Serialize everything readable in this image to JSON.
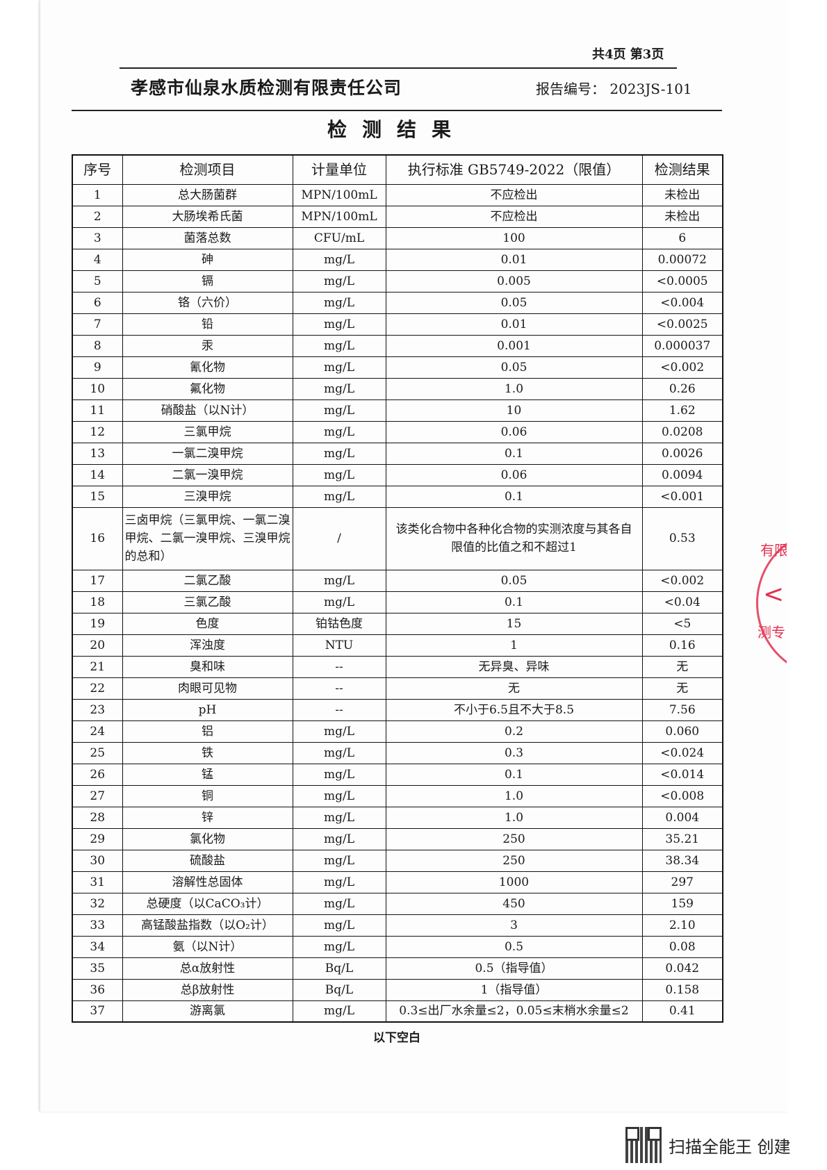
{
  "page_info": "共4页 第3页",
  "company": "孝感市仙泉水质检测有限责任公司",
  "report_no": "报告编号： 2023JS-101",
  "title": "检测结果",
  "table": {
    "headers": [
      "序号",
      "检测项目",
      "计量单位",
      "执行标准 GB5749-2022（限值）",
      "检测结果"
    ],
    "rows": [
      [
        "1",
        "总大肠菌群",
        "MPN/100mL",
        "不应检出",
        "未检出"
      ],
      [
        "2",
        "大肠埃希氏菌",
        "MPN/100mL",
        "不应检出",
        "未检出"
      ],
      [
        "3",
        "菌落总数",
        "CFU/mL",
        "100",
        "6"
      ],
      [
        "4",
        "砷",
        "mg/L",
        "0.01",
        "0.00072"
      ],
      [
        "5",
        "镉",
        "mg/L",
        "0.005",
        "<0.0005"
      ],
      [
        "6",
        "铬（六价）",
        "mg/L",
        "0.05",
        "<0.004"
      ],
      [
        "7",
        "铅",
        "mg/L",
        "0.01",
        "<0.0025"
      ],
      [
        "8",
        "汞",
        "mg/L",
        "0.001",
        "0.000037"
      ],
      [
        "9",
        "氰化物",
        "mg/L",
        "0.05",
        "<0.002"
      ],
      [
        "10",
        "氟化物",
        "mg/L",
        "1.0",
        "0.26"
      ],
      [
        "11",
        "硝酸盐（以N计）",
        "mg/L",
        "10",
        "1.62"
      ],
      [
        "12",
        "三氯甲烷",
        "mg/L",
        "0.06",
        "0.0208"
      ],
      [
        "13",
        "一氯二溴甲烷",
        "mg/L",
        "0.1",
        "0.0026"
      ],
      [
        "14",
        "二氯一溴甲烷",
        "mg/L",
        "0.06",
        "0.0094"
      ],
      [
        "15",
        "三溴甲烷",
        "mg/L",
        "0.1",
        "<0.001"
      ],
      [
        "16",
        "三卤甲烷（三氯甲烷、一氯二溴甲烷、二氯一溴甲烷、三溴甲烷的总和）",
        "/",
        "该类化合物中各种化合物的实测浓度与其各自限值的比值之和不超过1",
        "0.53"
      ],
      [
        "17",
        "二氯乙酸",
        "mg/L",
        "0.05",
        "<0.002"
      ],
      [
        "18",
        "三氯乙酸",
        "mg/L",
        "0.1",
        "<0.04"
      ],
      [
        "19",
        "色度",
        "铂钴色度",
        "15",
        "<5"
      ],
      [
        "20",
        "浑浊度",
        "NTU",
        "1",
        "0.16"
      ],
      [
        "21",
        "臭和味",
        "--",
        "无异臭、异味",
        "无"
      ],
      [
        "22",
        "肉眼可见物",
        "--",
        "无",
        "无"
      ],
      [
        "23",
        "pH",
        "--",
        "不小于6.5且不大于8.5",
        "7.56"
      ],
      [
        "24",
        "铝",
        "mg/L",
        "0.2",
        "0.060"
      ],
      [
        "25",
        "铁",
        "mg/L",
        "0.3",
        "<0.024"
      ],
      [
        "26",
        "锰",
        "mg/L",
        "0.1",
        "<0.014"
      ],
      [
        "27",
        "铜",
        "mg/L",
        "1.0",
        "<0.008"
      ],
      [
        "28",
        "锌",
        "mg/L",
        "1.0",
        "0.004"
      ],
      [
        "29",
        "氯化物",
        "mg/L",
        "250",
        "35.21"
      ],
      [
        "30",
        "硫酸盐",
        "mg/L",
        "250",
        "38.34"
      ],
      [
        "31",
        "溶解性总固体",
        "mg/L",
        "1000",
        "297"
      ],
      [
        "32",
        "总硬度（以CaCO₃计）",
        "mg/L",
        "450",
        "159"
      ],
      [
        "33",
        "高锰酸盐指数（以O₂计）",
        "mg/L",
        "3",
        "2.10"
      ],
      [
        "34",
        "氨（以N计）",
        "mg/L",
        "0.5",
        "0.08"
      ],
      [
        "35",
        "总α放射性",
        "Bq/L",
        "0.5（指导值）",
        "0.042"
      ],
      [
        "36",
        "总β放射性",
        "Bq/L",
        "1（指导值）",
        "0.158"
      ],
      [
        "37",
        "游离氯",
        "mg/L",
        "0.3≤出厂水余量≤2，0.05≤末梢水余量≤2",
        "0.41"
      ]
    ]
  },
  "end_note": "以下空白",
  "stamp_text": "检测专用章",
  "footer": {
    "text": "扫描全能王 创建",
    "icon": "qr-code-icon"
  },
  "colors": {
    "stamp": "#e2304f"
  }
}
